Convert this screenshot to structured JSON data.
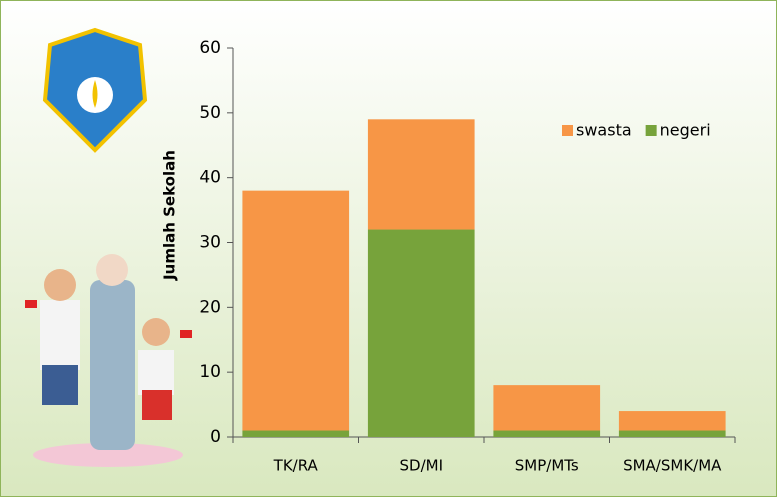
{
  "chart_data": {
    "type": "stacked_bar",
    "y_label": "Jumlah Sekolah",
    "categories": [
      "TK/RA",
      "SD/MI",
      "SMP/MTs",
      "SMA/SMK/MA"
    ],
    "series": [
      {
        "name": "swasta",
        "color": "#f79646",
        "values": [
          37,
          17,
          7,
          3
        ]
      },
      {
        "name": "negeri",
        "color": "#77a33b",
        "values": [
          1,
          32,
          1,
          1
        ]
      }
    ],
    "ylim": [
      0,
      60
    ],
    "yticks": [
      0,
      10,
      20,
      30,
      40,
      50,
      60
    ],
    "grid": false,
    "legend": "top-right"
  }
}
